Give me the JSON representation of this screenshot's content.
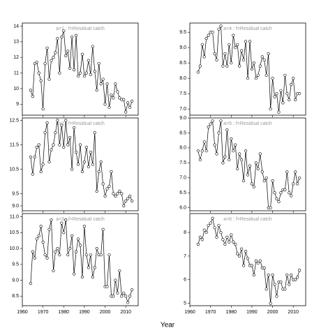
{
  "xlabel": "Year",
  "x": [
    1964,
    1965,
    1966,
    1967,
    1968,
    1969,
    1970,
    1971,
    1972,
    1973,
    1974,
    1975,
    1976,
    1977,
    1978,
    1979,
    1980,
    1981,
    1982,
    1983,
    1984,
    1985,
    1986,
    1987,
    1988,
    1989,
    1990,
    1991,
    1992,
    1993,
    1994,
    1995,
    1996,
    1997,
    1998,
    1999,
    2000,
    2001,
    2002,
    2003,
    2004,
    2005,
    2006,
    2007,
    2008,
    2009,
    2010,
    2011,
    2012,
    2013
  ],
  "xlim": [
    1960,
    2016
  ],
  "xticks": [
    1960,
    1970,
    1980,
    1990,
    2000,
    2010
  ],
  "chart_data": [
    {
      "type": "line",
      "title": "a=1  :  f=Residual catch",
      "values": [
        9.9,
        9.5,
        11.6,
        11.7,
        11.0,
        10.5,
        8.7,
        11.6,
        12.6,
        10.6,
        11.8,
        12.0,
        12.3,
        13.2,
        11.0,
        13.3,
        13.7,
        12.1,
        12.4,
        11.3,
        13.3,
        11.2,
        13.4,
        10.8,
        11.0,
        12.2,
        10.8,
        11.0,
        11.8,
        10.9,
        12.7,
        11.1,
        9.9,
        11.6,
        10.3,
        10.6,
        9.0,
        10.3,
        8.8,
        9.6,
        9.4,
        10.3,
        9.8,
        9.4,
        9.3,
        9.3,
        8.5,
        9.1,
        8.8,
        9.2
      ],
      "ylim": [
        8.3,
        14.2
      ],
      "yticks": [
        9,
        10,
        11,
        12,
        13,
        14
      ]
    },
    {
      "type": "line",
      "title": "a=4  :  f=Residual catch",
      "values": [
        8.2,
        8.4,
        9.1,
        8.7,
        9.3,
        9.4,
        9.5,
        9.5,
        8.8,
        8.6,
        9.6,
        9.7,
        8.4,
        8.8,
        8.4,
        9.1,
        8.5,
        9.4,
        9.0,
        9.1,
        8.4,
        8.9,
        8.6,
        9.2,
        8.0,
        9.2,
        8.3,
        8.5,
        8.0,
        8.1,
        8.4,
        8.7,
        8.6,
        8.1,
        8.8,
        7.0,
        8.0,
        7.4,
        7.5,
        6.9,
        7.6,
        7.2,
        8.1,
        7.5,
        7.3,
        7.8,
        8.0,
        7.3,
        7.5,
        7.5
      ],
      "ylim": [
        6.8,
        9.8
      ],
      "yticks": [
        {
          "value": 7,
          "label": "7.0"
        },
        7.5,
        {
          "value": 8,
          "label": "8.0"
        },
        8.5,
        {
          "value": 9,
          "label": "9.0"
        },
        9.5
      ]
    },
    {
      "type": "line",
      "title": "a=2  :  f=Residual catch",
      "values": [
        11.0,
        10.3,
        11.0,
        11.4,
        11.5,
        10.4,
        10.7,
        12.0,
        12.4,
        10.8,
        11.3,
        11.5,
        12.0,
        12.5,
        11.5,
        12.3,
        11.4,
        12.5,
        11.5,
        11.8,
        10.5,
        12.2,
        11.2,
        10.7,
        11.5,
        10.4,
        10.8,
        11.4,
        10.6,
        11.2,
        10.7,
        12.0,
        9.6,
        10.4,
        10.8,
        9.9,
        9.4,
        9.7,
        9.8,
        10.4,
        9.5,
        9.4,
        9.5,
        9.6,
        9.5,
        9.0,
        9.2,
        9.3,
        9.4,
        9.2
      ],
      "ylim": [
        8.8,
        12.6
      ],
      "yticks": [
        {
          "value": 9,
          "label": "9.0"
        },
        9.5,
        10.5,
        11.5,
        12.5
      ]
    },
    {
      "type": "line",
      "title": "a=5  :  f=Residual catch",
      "values": [
        7.9,
        7.6,
        7.9,
        8.2,
        7.9,
        8.7,
        8.8,
        8.9,
        8.1,
        7.8,
        8.5,
        8.9,
        7.5,
        7.7,
        8.6,
        7.6,
        8.3,
        7.9,
        8.1,
        7.3,
        7.8,
        7.6,
        6.9,
        7.9,
        7.1,
        7.4,
        6.8,
        6.7,
        7.5,
        7.3,
        7.8,
        7.2,
        6.9,
        7.0,
        6.0,
        6.0,
        6.9,
        6.5,
        6.3,
        6.2,
        6.5,
        6.6,
        6.6,
        7.2,
        6.5,
        6.4,
        6.8,
        7.2,
        6.8,
        7.0
      ],
      "ylim": [
        5.9,
        9.0
      ],
      "yticks": [
        {
          "value": 6,
          "label": "6.0"
        },
        6.5,
        {
          "value": 7,
          "label": "7.0"
        },
        7.5,
        {
          "value": 8,
          "label": "8.0"
        },
        8.5,
        {
          "value": 9,
          "label": "9.0"
        }
      ]
    },
    {
      "type": "line",
      "title": "a=3  :  f=Residual catch",
      "values": [
        8.9,
        9.9,
        9.7,
        10.3,
        10.4,
        10.7,
        10.2,
        9.8,
        9.7,
        10.6,
        10.9,
        9.3,
        9.9,
        10.0,
        9.8,
        10.8,
        10.5,
        10.9,
        9.8,
        10.0,
        10.4,
        9.2,
        9.9,
        10.3,
        10.1,
        9.1,
        10.7,
        9.8,
        9.4,
        9.8,
        9.1,
        9.4,
        10.0,
        9.8,
        9.8,
        10.6,
        8.8,
        8.8,
        9.8,
        8.5,
        8.5,
        9.0,
        8.6,
        9.3,
        8.5,
        8.6,
        8.5,
        8.3,
        8.5,
        8.7
      ],
      "ylim": [
        8.2,
        11.1
      ],
      "yticks": [
        8.5,
        {
          "value": 9,
          "label": "9.0"
        },
        9.5,
        {
          "value": 10,
          "label": "10.0"
        },
        10.5,
        {
          "value": 11,
          "label": "11.0"
        }
      ]
    },
    {
      "type": "line",
      "title": "a=6  :  f=Residual catch",
      "values": [
        7.5,
        7.8,
        7.7,
        8.1,
        8.0,
        8.3,
        8.4,
        8.6,
        8.2,
        7.8,
        8.3,
        8.0,
        7.7,
        7.5,
        7.8,
        7.6,
        7.9,
        7.6,
        7.5,
        7.1,
        7.0,
        7.3,
        6.6,
        7.2,
        6.9,
        6.6,
        6.6,
        6.2,
        6.8,
        6.7,
        6.8,
        6.5,
        6.5,
        5.6,
        6.2,
        5.0,
        6.2,
        5.8,
        5.3,
        5.9,
        5.9,
        5.6,
        5.6,
        6.2,
        5.8,
        6.2,
        6.0,
        6.0,
        6.1,
        6.4
      ],
      "ylim": [
        4.9,
        8.8
      ],
      "yticks": [
        5,
        6,
        7,
        8
      ]
    }
  ]
}
